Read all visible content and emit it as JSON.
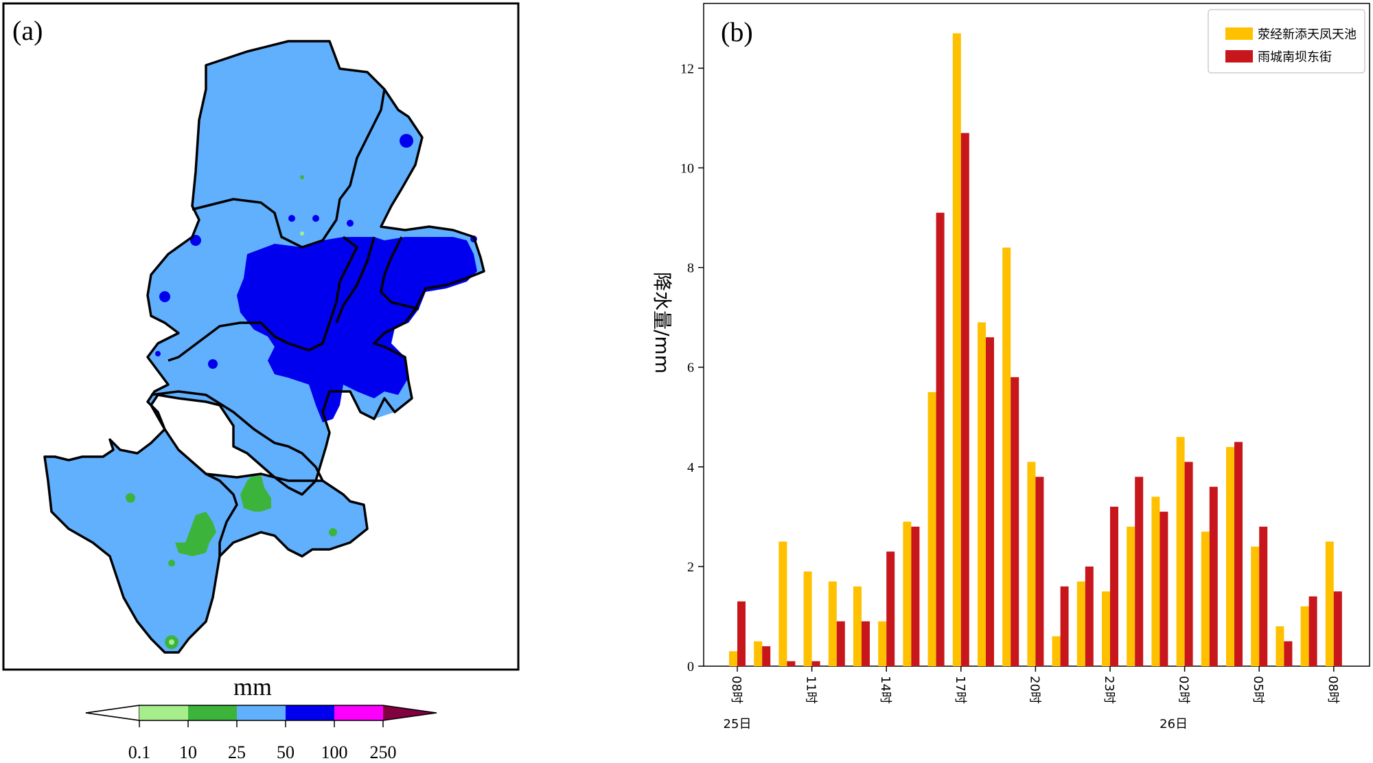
{
  "panel_a": {
    "label": "(a)",
    "colorbar": {
      "unit": "mm",
      "ticks": [
        "0.1",
        "10",
        "25",
        "50",
        "100",
        "250"
      ],
      "colors": [
        "#ffffff",
        "#a6ee8c",
        "#3cb43c",
        "#61b0fe",
        "#0000ef",
        "#fd00fd",
        "#800040"
      ]
    },
    "fill_colors": {
      "light_blue": "#61b0fe",
      "blue": "#0000ef",
      "green": "#3cb43c",
      "light_green": "#a6ee8c"
    }
  },
  "chart_data": {
    "type": "bar",
    "label": "(b)",
    "ylabel": "降水量/mm",
    "ylim": [
      0,
      13.3
    ],
    "yticks": [
      "0",
      "2",
      "4",
      "6",
      "8",
      "10",
      "12"
    ],
    "xtick_labels": [
      "08时",
      "11时",
      "14时",
      "17时",
      "20时",
      "23时",
      "02时",
      "05时",
      "08时"
    ],
    "day_labels": [
      "25日",
      "26日"
    ],
    "series": [
      {
        "name": "荥经新添天凤天池",
        "color": "#ffc000",
        "values": [
          0.3,
          0.5,
          2.5,
          1.9,
          1.7,
          1.6,
          0.9,
          2.9,
          5.5,
          12.7,
          6.9,
          8.4,
          4.1,
          0.6,
          1.7,
          1.5,
          2.8,
          3.4,
          4.6,
          2.7,
          4.4,
          2.4,
          0.8,
          1.2,
          2.5
        ]
      },
      {
        "name": "雨城南坝东街",
        "color": "#c8161d",
        "values": [
          1.3,
          0.4,
          0.1,
          0.1,
          0.9,
          0.9,
          2.3,
          2.8,
          9.1,
          10.7,
          6.6,
          5.8,
          3.8,
          1.6,
          2.0,
          3.2,
          3.8,
          3.1,
          4.1,
          3.6,
          4.5,
          2.8,
          0.5,
          1.4,
          1.5
        ]
      }
    ]
  }
}
